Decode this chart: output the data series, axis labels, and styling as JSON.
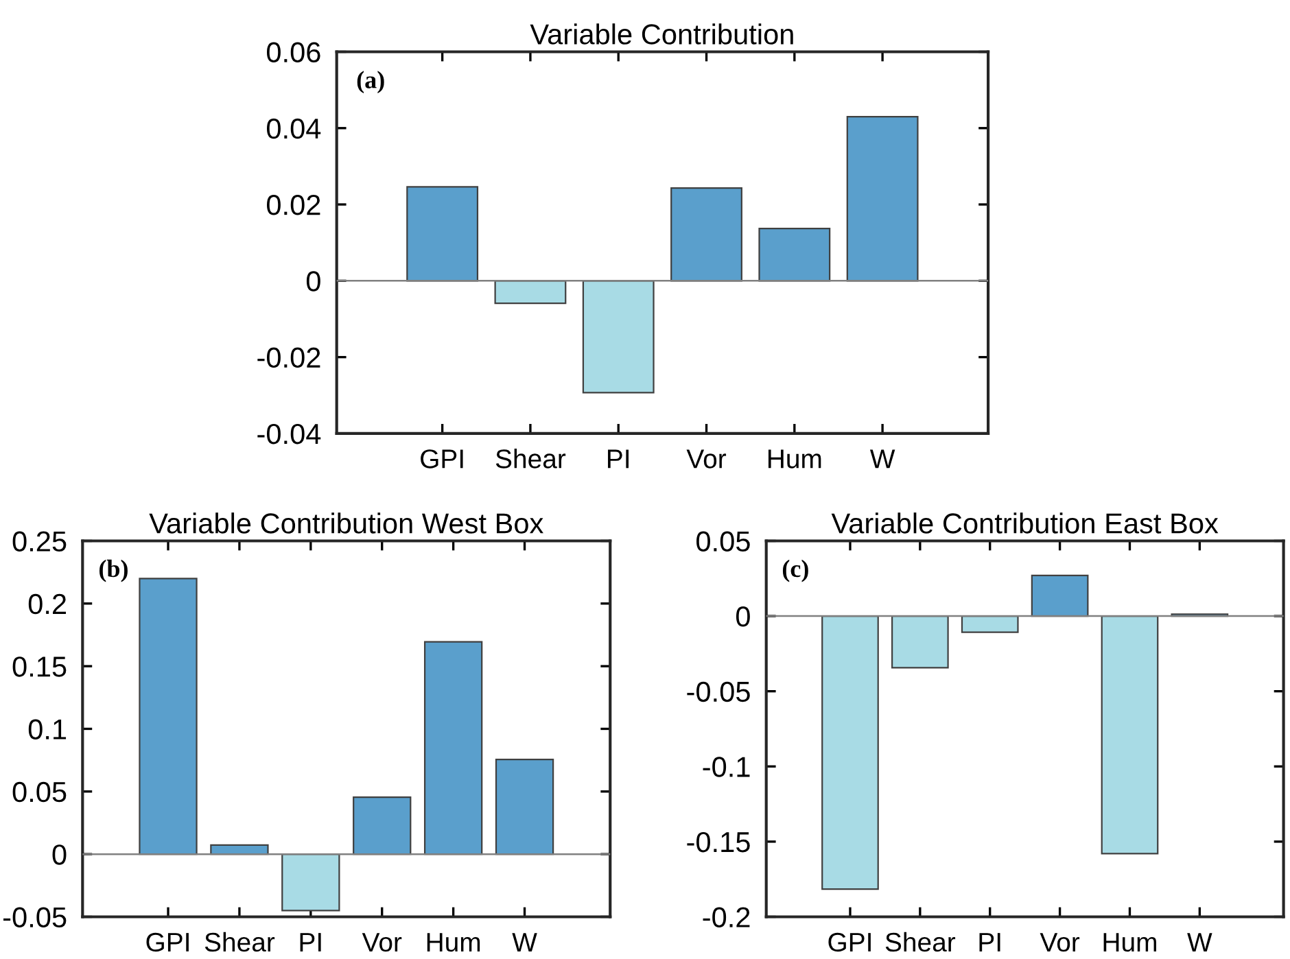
{
  "chart_data": [
    {
      "type": "bar",
      "title": "Variable Contribution",
      "categories": [
        "GPI",
        "Shear",
        "PI",
        "Vor",
        "Hum",
        "W"
      ],
      "values": [
        0.0246,
        -0.0059,
        -0.0293,
        0.0243,
        0.0137,
        0.043
      ],
      "colors": [
        "#5a9fcc",
        "#a8dbe5",
        "#a8dbe5",
        "#5a9fcc",
        "#5a9fcc",
        "#5a9fcc"
      ],
      "ylim": [
        -0.04,
        0.06
      ],
      "yticks": [
        -0.04,
        -0.02,
        0,
        0.02,
        0.04,
        0.06
      ],
      "ref_lines": [
        {
          "axis": "y",
          "value": 0,
          "color": "#808080"
        }
      ],
      "annotations": [
        "(a)"
      ],
      "grid": false,
      "legend": false
    },
    {
      "type": "bar",
      "title": "Variable Contribution West Box",
      "categories": [
        "GPI",
        "Shear",
        "PI",
        "Vor",
        "Hum",
        "W"
      ],
      "values": [
        0.22,
        0.0073,
        -0.045,
        0.0455,
        0.1695,
        0.0756
      ],
      "colors": [
        "#5a9fcc",
        "#5a9fcc",
        "#a8dbe5",
        "#5a9fcc",
        "#5a9fcc",
        "#5a9fcc"
      ],
      "ylim": [
        -0.05,
        0.25
      ],
      "yticks": [
        -0.05,
        0,
        0.05,
        0.1,
        0.15,
        0.2,
        0.25
      ],
      "ref_lines": [
        {
          "axis": "y",
          "value": 0,
          "color": "#808080"
        }
      ],
      "annotations": [
        "(b)"
      ],
      "grid": false,
      "legend": false
    },
    {
      "type": "bar",
      "title": "Variable Contribution East Box",
      "categories": [
        "GPI",
        "Shear",
        "PI",
        "Vor",
        "Hum",
        "W"
      ],
      "values": [
        -0.1816,
        -0.0344,
        -0.0107,
        0.027,
        -0.158,
        0.0012
      ],
      "colors": [
        "#a8dbe5",
        "#a8dbe5",
        "#a8dbe5",
        "#5a9fcc",
        "#a8dbe5",
        "#5a9fcc"
      ],
      "ylim": [
        -0.2,
        0.05
      ],
      "yticks": [
        -0.2,
        -0.15,
        -0.1,
        -0.05,
        0,
        0.05
      ],
      "ref_lines": [
        {
          "axis": "y",
          "value": 0,
          "color": "#808080"
        }
      ],
      "annotations": [
        "(c)"
      ],
      "grid": false,
      "legend": false
    }
  ]
}
